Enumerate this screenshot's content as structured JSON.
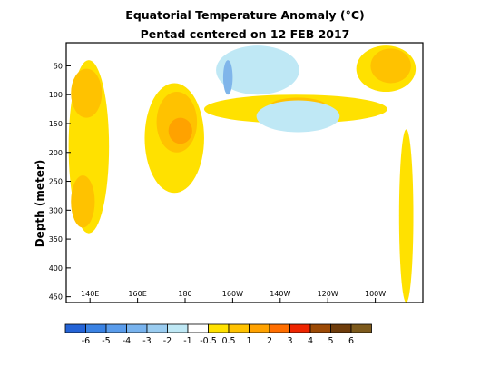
{
  "chart_data": {
    "type": "heatmap",
    "title": "Equatorial Temperature Anomaly (°C)",
    "subtitle": "Pentad centered on 12 FEB 2017",
    "xlabel": "",
    "ylabel": "Depth (meter)",
    "x_ticks": [
      "140E",
      "160E",
      "180",
      "160W",
      "140W",
      "120W",
      "100W"
    ],
    "x_tick_values": [
      140,
      160,
      180,
      200,
      220,
      240,
      260
    ],
    "xlim": [
      130,
      280
    ],
    "y_ticks": [
      "50",
      "100",
      "150",
      "200",
      "250",
      "300",
      "350",
      "400",
      "450"
    ],
    "y_tick_values": [
      50,
      100,
      150,
      200,
      250,
      300,
      350,
      400,
      450
    ],
    "ylim": [
      460,
      10
    ],
    "colorbar": {
      "labels": [
        "-6",
        "-5",
        "-4",
        "-3",
        "-2",
        "-1",
        "-0.5",
        "0.5",
        "1",
        "2",
        "3",
        "4",
        "5",
        "6"
      ],
      "colors": [
        "#2463d6",
        "#3a82e3",
        "#5a9ceb",
        "#78b3ee",
        "#9accf0",
        "#bfe8f5",
        "#ffffff",
        "#ffe100",
        "#ffc200",
        "#ffa200",
        "#ff6e00",
        "#ee2500",
        "#9c4a05",
        "#6e3c0b",
        "#7d5a1c"
      ]
    },
    "anomaly_regions": [
      {
        "level": 0.5,
        "x": [
          131,
          148
        ],
        "y": [
          40,
          340
        ]
      },
      {
        "level": 1,
        "x": [
          132,
          145
        ],
        "y": [
          55,
          140
        ]
      },
      {
        "level": 1,
        "x": [
          132,
          142
        ],
        "y": [
          240,
          330
        ]
      },
      {
        "level": 0.5,
        "x": [
          163,
          188
        ],
        "y": [
          80,
          270
        ]
      },
      {
        "level": 1,
        "x": [
          168,
          185
        ],
        "y": [
          95,
          200
        ]
      },
      {
        "level": 2,
        "x": [
          173,
          183
        ],
        "y": [
          140,
          185
        ]
      },
      {
        "level": 0.5,
        "x": [
          188,
          265
        ],
        "y": [
          100,
          150
        ]
      },
      {
        "level": 1,
        "x": [
          215,
          240
        ],
        "y": [
          105,
          140
        ]
      },
      {
        "level": -0.5,
        "x": [
          193,
          228
        ],
        "y": [
          15,
          100
        ]
      },
      {
        "level": -1,
        "x": [
          196,
          200
        ],
        "y": [
          40,
          100
        ]
      },
      {
        "level": -0.5,
        "x": [
          210,
          245
        ],
        "y": [
          110,
          165
        ]
      },
      {
        "level": 0.5,
        "x": [
          252,
          277
        ],
        "y": [
          15,
          95
        ]
      },
      {
        "level": 1,
        "x": [
          258,
          275
        ],
        "y": [
          20,
          80
        ]
      },
      {
        "level": 0.5,
        "x": [
          270,
          276
        ],
        "y": [
          160,
          460
        ]
      }
    ]
  }
}
